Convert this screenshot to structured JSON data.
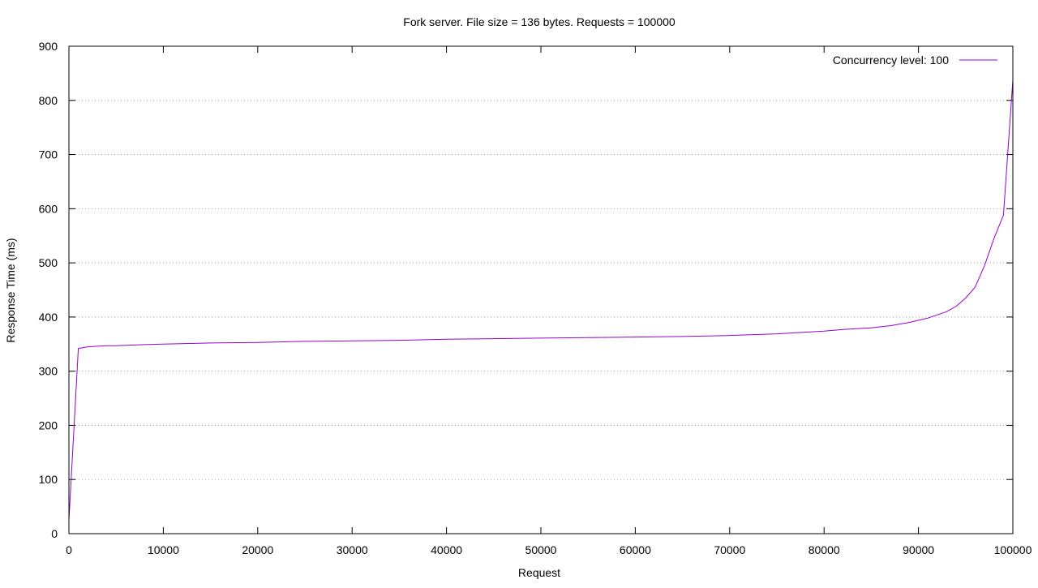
{
  "chart_data": {
    "type": "line",
    "title": "Fork server. File size = 136 bytes. Requests = 100000",
    "xlabel": "Request",
    "ylabel": "Response Time (ms)",
    "xlim": [
      0,
      100000
    ],
    "ylim": [
      0,
      900
    ],
    "xticks": [
      0,
      10000,
      20000,
      30000,
      40000,
      50000,
      60000,
      70000,
      80000,
      90000,
      100000
    ],
    "yticks": [
      0,
      100,
      200,
      300,
      400,
      500,
      600,
      700,
      800,
      900
    ],
    "grid": "horizontal dotted",
    "legend_position": "top-right",
    "colors": {
      "series": "#9400d3",
      "grid": "#a0a0a0",
      "axis": "#000000"
    },
    "series": [
      {
        "name": "Concurrency level: 100",
        "x": [
          0,
          1000,
          2000,
          3000,
          4000,
          5000,
          8000,
          10000,
          15000,
          20000,
          25000,
          30000,
          35000,
          40000,
          45000,
          50000,
          55000,
          60000,
          65000,
          70000,
          75000,
          80000,
          82000,
          84000,
          85000,
          86000,
          87000,
          88000,
          89000,
          90000,
          91000,
          92000,
          93000,
          94000,
          95000,
          96000,
          97000,
          98000,
          99000,
          100000
        ],
        "values": [
          25,
          342,
          345,
          346,
          347,
          347,
          349,
          350,
          352,
          353,
          355,
          356,
          357,
          359,
          360,
          361,
          362,
          363,
          364,
          366,
          369,
          374,
          377,
          379,
          380,
          382,
          384,
          387,
          390,
          394,
          398,
          404,
          410,
          420,
          435,
          455,
          495,
          545,
          588,
          838
        ]
      }
    ]
  }
}
